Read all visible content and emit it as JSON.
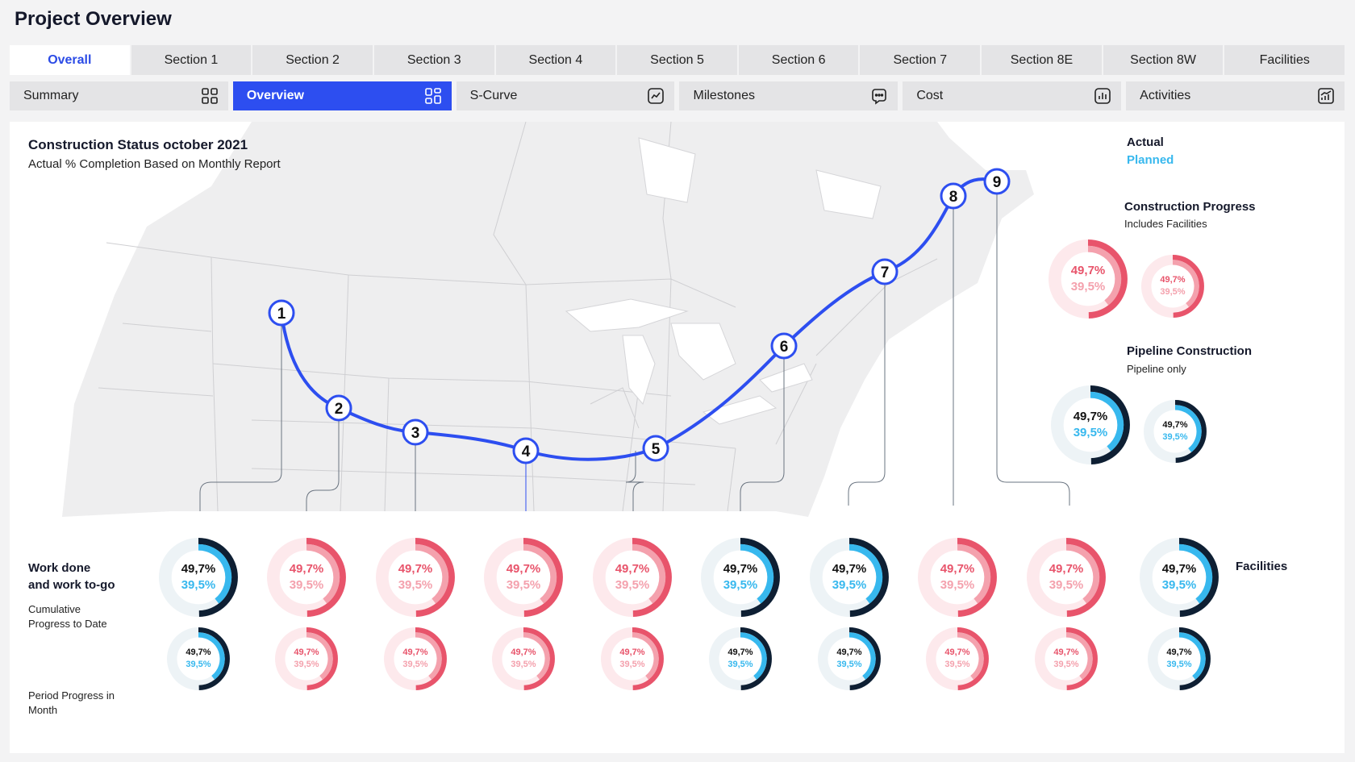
{
  "header": {
    "title": "Project Overview"
  },
  "tabs": [
    "Overall",
    "Section 1",
    "Section 2",
    "Section 3",
    "Section 4",
    "Section 5",
    "Section 6",
    "Section 7",
    "Section 8E",
    "Section 8W",
    "Facilities"
  ],
  "active_tab": 0,
  "subtabs": [
    {
      "label": "Summary",
      "icon": "grid-icon"
    },
    {
      "label": "Overview",
      "icon": "grid-icon"
    },
    {
      "label": "S-Curve",
      "icon": "line-chart-icon"
    },
    {
      "label": "Milestones",
      "icon": "chat-dots-icon"
    },
    {
      "label": "Cost",
      "icon": "bar-chart-icon"
    },
    {
      "label": "Activities",
      "icon": "bar-line-chart-icon"
    }
  ],
  "active_subtab": 1,
  "map": {
    "title": "Construction Status october 2021",
    "subtitle": "Actual % Completion Based on Monthly Report",
    "markers": [
      "1",
      "2",
      "3",
      "4",
      "5",
      "6",
      "7",
      "8",
      "9"
    ],
    "route_color": "#2d4ef0"
  },
  "legend": {
    "actual": "Actual",
    "planned": "Planned"
  },
  "construction_progress": {
    "title": "Construction Progress",
    "subtitle": "Includes Facilities",
    "actual": "49,7%",
    "planned": "39,5%",
    "theme": "red"
  },
  "pipeline_construction": {
    "title": "Pipeline Construction",
    "subtitle": "Pipeline only",
    "actual": "49,7%",
    "planned": "39,5%",
    "theme": "blue"
  },
  "work": {
    "title_line1": "Work done",
    "title_line2": "and work to-go",
    "cumulative_line1": "Cumulative",
    "cumulative_line2": "Progress to Date",
    "period_line1": "Period Progress in",
    "period_line2": "Month",
    "facilities_title": "Facilities",
    "themes": [
      "blue",
      "red",
      "red",
      "red",
      "red",
      "blue",
      "blue",
      "red",
      "red",
      "blue"
    ],
    "cumulative": [
      {
        "actual": "49,7%",
        "planned": "39,5%"
      },
      {
        "actual": "49,7%",
        "planned": "39,5%"
      },
      {
        "actual": "49,7%",
        "planned": "39,5%"
      },
      {
        "actual": "49,7%",
        "planned": "39,5%"
      },
      {
        "actual": "49,7%",
        "planned": "39,5%"
      },
      {
        "actual": "49,7%",
        "planned": "39,5%"
      },
      {
        "actual": "49,7%",
        "planned": "39,5%"
      },
      {
        "actual": "49,7%",
        "planned": "39,5%"
      },
      {
        "actual": "49,7%",
        "planned": "39,5%"
      },
      {
        "actual": "49,7%",
        "planned": "39,5%"
      }
    ],
    "period": [
      {
        "actual": "49,7%",
        "planned": "39,5%"
      },
      {
        "actual": "49,7%",
        "planned": "39,5%"
      },
      {
        "actual": "49,7%",
        "planned": "39,5%"
      },
      {
        "actual": "49,7%",
        "planned": "39,5%"
      },
      {
        "actual": "49,7%",
        "planned": "39,5%"
      },
      {
        "actual": "49,7%",
        "planned": "39,5%"
      },
      {
        "actual": "49,7%",
        "planned": "39,5%"
      },
      {
        "actual": "49,7%",
        "planned": "39,5%"
      },
      {
        "actual": "49,7%",
        "planned": "39,5%"
      },
      {
        "actual": "49,7%",
        "planned": "39,5%"
      }
    ]
  },
  "colors": {
    "accent": "#2d4ef0",
    "blue_actual": "#0e1f33",
    "blue_planned": "#37b8ee",
    "blue_track": "#edf3f6",
    "red_actual": "#e8546b",
    "red_planned": "#f4a1ad",
    "red_track": "#fde9ec"
  }
}
